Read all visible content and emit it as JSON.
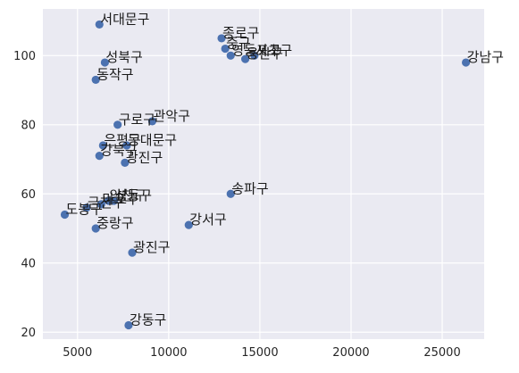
{
  "chart_data": {
    "type": "scatter",
    "title": "",
    "xlabel": "",
    "ylabel": "",
    "xlim": [
      3100,
      27300
    ],
    "ylim": [
      18,
      113.5
    ],
    "grid": true,
    "x_ticks": [
      5000,
      10000,
      15000,
      20000,
      25000
    ],
    "y_ticks": [
      20,
      40,
      60,
      80,
      100
    ],
    "marker_color": "#4c72b0",
    "plot_background": "#eaeaf2",
    "points": [
      {
        "label": "서대문구",
        "x": 6200,
        "y": 109
      },
      {
        "label": "종로구",
        "x": 12900,
        "y": 105
      },
      {
        "label": "중구",
        "x": 13100,
        "y": 102
      },
      {
        "label": "영등포구",
        "x": 13400,
        "y": 100
      },
      {
        "label": "용산구",
        "x": 14200,
        "y": 99
      },
      {
        "label": "서초구",
        "x": 14700,
        "y": 100
      },
      {
        "label": "강남구",
        "x": 26300,
        "y": 98
      },
      {
        "label": "성북구",
        "x": 6500,
        "y": 98
      },
      {
        "label": "동작구",
        "x": 6000,
        "y": 93
      },
      {
        "label": "구로구",
        "x": 7200,
        "y": 80
      },
      {
        "label": "관악구",
        "x": 9100,
        "y": 81
      },
      {
        "label": "은평구",
        "x": 6400,
        "y": 74
      },
      {
        "label": "동대문구",
        "x": 7700,
        "y": 74
      },
      {
        "label": "강북구",
        "x": 6200,
        "y": 71
      },
      {
        "label": "광진구",
        "x": 7600,
        "y": 69
      },
      {
        "label": "송파구",
        "x": 13400,
        "y": 60
      },
      {
        "label": "성동구",
        "x": 7000,
        "y": 58
      },
      {
        "label": "양천구",
        "x": 6700,
        "y": 58
      },
      {
        "label": "마포구",
        "x": 6300,
        "y": 57
      },
      {
        "label": "금천구",
        "x": 5500,
        "y": 56
      },
      {
        "label": "도봉구",
        "x": 4300,
        "y": 54
      },
      {
        "label": "중랑구",
        "x": 6000,
        "y": 50
      },
      {
        "label": "강서구",
        "x": 11100,
        "y": 51
      },
      {
        "label": "광진구",
        "x": 8000,
        "y": 43
      },
      {
        "label": "강동구",
        "x": 7800,
        "y": 22
      }
    ]
  }
}
